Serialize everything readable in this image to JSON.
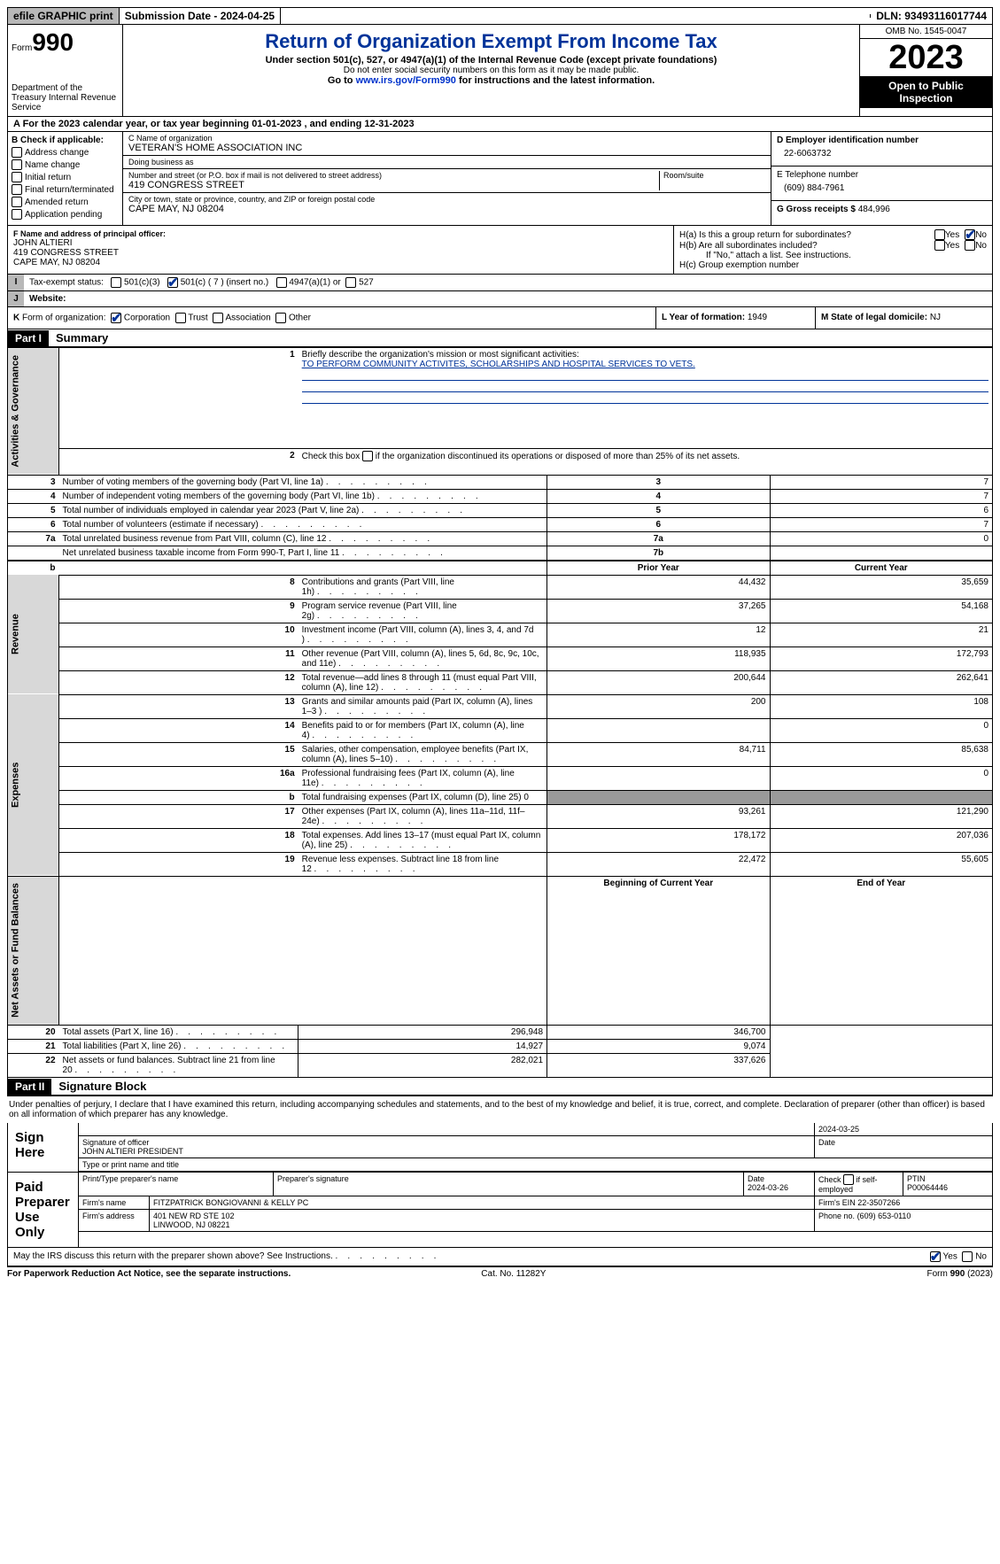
{
  "topbar": {
    "efile": "efile GRAPHIC print",
    "submission": "Submission Date - 2024-04-25",
    "dln": "DLN: 93493116017744"
  },
  "header": {
    "form_label": "Form",
    "form_num": "990",
    "dept": "Department of the Treasury Internal Revenue Service",
    "title": "Return of Organization Exempt From Income Tax",
    "subtitle": "Under section 501(c), 527, or 4947(a)(1) of the Internal Revenue Code (except private foundations)",
    "note": "Do not enter social security numbers on this form as it may be made public.",
    "goto_prefix": "Go to ",
    "goto_link": "www.irs.gov/Form990",
    "goto_suffix": " for instructions and the latest information.",
    "omb": "OMB No. 1545-0047",
    "year": "2023",
    "open": "Open to Public Inspection"
  },
  "taxyear": "A For the 2023 calendar year, or tax year beginning 01-01-2023   , and ending 12-31-2023",
  "boxB": {
    "label": "B Check if applicable:",
    "items": [
      "Address change",
      "Name change",
      "Initial return",
      "Final return/terminated",
      "Amended return",
      "Application pending"
    ]
  },
  "boxC": {
    "name_label": "C Name of organization",
    "name": "VETERAN'S HOME ASSOCIATION INC",
    "dba_label": "Doing business as",
    "dba": "",
    "street_label": "Number and street (or P.O. box if mail is not delivered to street address)",
    "street": "419 CONGRESS STREET",
    "room_label": "Room/suite",
    "city_label": "City or town, state or province, country, and ZIP or foreign postal code",
    "city": "CAPE MAY, NJ  08204"
  },
  "boxD": {
    "ein_label": "D Employer identification number",
    "ein": "22-6063732",
    "phone_label": "E Telephone number",
    "phone": "(609) 884-7961",
    "gross_label": "G Gross receipts $",
    "gross": "484,996"
  },
  "boxF": {
    "label": "F  Name and address of principal officer:",
    "name": "JOHN ALTIERI",
    "street": "419 CONGRESS STREET",
    "city": "CAPE MAY, NJ  08204"
  },
  "boxH": {
    "ha": "H(a)  Is this a group return for subordinates?",
    "hb": "H(b)  Are all subordinates included?",
    "hb_note": "If \"No,\" attach a list. See instructions.",
    "hc": "H(c)  Group exemption number",
    "yes": "Yes",
    "no": "No"
  },
  "rowI": {
    "lbl": "I",
    "label": "Tax-exempt status:",
    "o1": "501(c)(3)",
    "o2": "501(c) ( 7 ) (insert no.)",
    "o3": "4947(a)(1) or",
    "o4": "527"
  },
  "rowJ": {
    "lbl": "J",
    "label": "Website:",
    "value": ""
  },
  "rowK": {
    "lbl": "K",
    "label": "Form of organization:",
    "o1": "Corporation",
    "o2": "Trust",
    "o3": "Association",
    "o4": "Other",
    "l_label": "L Year of formation:",
    "l_val": "1949",
    "m_label": "M State of legal domicile:",
    "m_val": "NJ"
  },
  "part1": {
    "num": "Part I",
    "title": "Summary"
  },
  "summary": {
    "section_labels": {
      "ag": "Activities & Governance",
      "rev": "Revenue",
      "exp": "Expenses",
      "na": "Net Assets or Fund Balances"
    },
    "line1_label": "Briefly describe the organization's mission or most significant activities:",
    "line1_val": "TO PERFORM COMMUNITY ACTIVITES, SCHOLARSHIPS AND HOSPITAL SERVICES TO VETS.",
    "line2": "Check this box      if the organization discontinued its operations or disposed of more than 25% of its net assets.",
    "lines": [
      {
        "n": "3",
        "d": "Number of voting members of the governing body (Part VI, line 1a)",
        "b": "3",
        "v": "7"
      },
      {
        "n": "4",
        "d": "Number of independent voting members of the governing body (Part VI, line 1b)",
        "b": "4",
        "v": "7"
      },
      {
        "n": "5",
        "d": "Total number of individuals employed in calendar year 2023 (Part V, line 2a)",
        "b": "5",
        "v": "6"
      },
      {
        "n": "6",
        "d": "Total number of volunteers (estimate if necessary)",
        "b": "6",
        "v": "7"
      },
      {
        "n": "7a",
        "d": "Total unrelated business revenue from Part VIII, column (C), line 12",
        "b": "7a",
        "v": "0"
      },
      {
        "n": "",
        "d": "Net unrelated business taxable income from Form 990-T, Part I, line 11",
        "b": "7b",
        "v": ""
      }
    ],
    "col_prior": "Prior Year",
    "col_current": "Current Year",
    "rev_lines": [
      {
        "n": "8",
        "d": "Contributions and grants (Part VIII, line 1h)",
        "p": "44,432",
        "c": "35,659"
      },
      {
        "n": "9",
        "d": "Program service revenue (Part VIII, line 2g)",
        "p": "37,265",
        "c": "54,168"
      },
      {
        "n": "10",
        "d": "Investment income (Part VIII, column (A), lines 3, 4, and 7d )",
        "p": "12",
        "c": "21"
      },
      {
        "n": "11",
        "d": "Other revenue (Part VIII, column (A), lines 5, 6d, 8c, 9c, 10c, and 11e)",
        "p": "118,935",
        "c": "172,793"
      },
      {
        "n": "12",
        "d": "Total revenue—add lines 8 through 11 (must equal Part VIII, column (A), line 12)",
        "p": "200,644",
        "c": "262,641"
      }
    ],
    "exp_lines": [
      {
        "n": "13",
        "d": "Grants and similar amounts paid (Part IX, column (A), lines 1–3 )",
        "p": "200",
        "c": "108"
      },
      {
        "n": "14",
        "d": "Benefits paid to or for members (Part IX, column (A), line 4)",
        "p": "",
        "c": "0"
      },
      {
        "n": "15",
        "d": "Salaries, other compensation, employee benefits (Part IX, column (A), lines 5–10)",
        "p": "84,711",
        "c": "85,638"
      },
      {
        "n": "16a",
        "d": "Professional fundraising fees (Part IX, column (A), line 11e)",
        "p": "",
        "c": "0"
      },
      {
        "n": "b",
        "d": "Total fundraising expenses (Part IX, column (D), line 25) 0",
        "grey": true
      },
      {
        "n": "17",
        "d": "Other expenses (Part IX, column (A), lines 11a–11d, 11f–24e)",
        "p": "93,261",
        "c": "121,290"
      },
      {
        "n": "18",
        "d": "Total expenses. Add lines 13–17 (must equal Part IX, column (A), line 25)",
        "p": "178,172",
        "c": "207,036"
      },
      {
        "n": "19",
        "d": "Revenue less expenses. Subtract line 18 from line 12",
        "p": "22,472",
        "c": "55,605"
      }
    ],
    "col_begin": "Beginning of Current Year",
    "col_end": "End of Year",
    "na_lines": [
      {
        "n": "20",
        "d": "Total assets (Part X, line 16)",
        "p": "296,948",
        "c": "346,700"
      },
      {
        "n": "21",
        "d": "Total liabilities (Part X, line 26)",
        "p": "14,927",
        "c": "9,074"
      },
      {
        "n": "22",
        "d": "Net assets or fund balances. Subtract line 21 from line 20",
        "p": "282,021",
        "c": "337,626"
      }
    ]
  },
  "part2": {
    "num": "Part II",
    "title": "Signature Block"
  },
  "penalty": "Under penalties of perjury, I declare that I have examined this return, including accompanying schedules and statements, and to the best of my knowledge and belief, it is true, correct, and complete. Declaration of preparer (other than officer) is based on all information of which preparer has any knowledge.",
  "sign": {
    "here": "Sign Here",
    "sig_officer": "Signature of officer",
    "officer_name": "JOHN ALTIERI PRESIDENT",
    "type_name": "Type or print name and title",
    "date_label": "Date",
    "date1": "2024-03-25",
    "paid": "Paid Preparer Use Only",
    "prep_name_label": "Print/Type preparer's name",
    "prep_sig_label": "Preparer's signature",
    "date2_label": "Date",
    "date2": "2024-03-26",
    "check_self": "Check       if self-employed",
    "ptin_label": "PTIN",
    "ptin": "P00064446",
    "firm_name_label": "Firm's name",
    "firm_name": "FITZPATRICK BONGIOVANNI & KELLY PC",
    "firm_ein_label": "Firm's EIN",
    "firm_ein": "22-3507266",
    "firm_addr_label": "Firm's address",
    "firm_addr1": "401 NEW RD STE 102",
    "firm_addr2": "LINWOOD, NJ  08221",
    "phone_label": "Phone no.",
    "phone": "(609) 653-0110"
  },
  "discuss": "May the IRS discuss this return with the preparer shown above? See Instructions.",
  "footer": {
    "paperwork": "For Paperwork Reduction Act Notice, see the separate instructions.",
    "cat": "Cat. No. 11282Y",
    "form": "Form 990 (2023)"
  }
}
